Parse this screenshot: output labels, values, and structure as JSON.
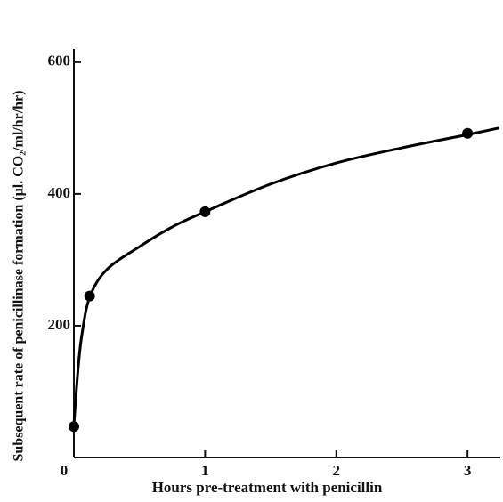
{
  "chart_data": {
    "type": "scatter",
    "xlabel": "Hours pre-treatment with penicillin",
    "ylabel": "Subsequent rate of penicillinase formation (μl. CO₂/ml/hr/hr)",
    "points": {
      "x": [
        0,
        0.12,
        1,
        3
      ],
      "y": [
        47,
        245,
        373,
        492
      ],
      "color": "#000000"
    },
    "curve": {
      "x": [
        0,
        0.03,
        0.06,
        0.12,
        0.25,
        0.5,
        0.75,
        1,
        1.5,
        2,
        2.5,
        3,
        3.24
      ],
      "y": [
        50,
        130,
        185,
        243,
        285,
        320,
        350,
        373,
        415,
        447,
        470,
        490,
        500
      ],
      "color": "#000000"
    },
    "xlim": [
      0,
      3.25
    ],
    "ylim": [
      0,
      620
    ],
    "xticks": [
      0,
      1,
      2,
      3
    ],
    "yticks": [
      200,
      400,
      600
    ]
  }
}
